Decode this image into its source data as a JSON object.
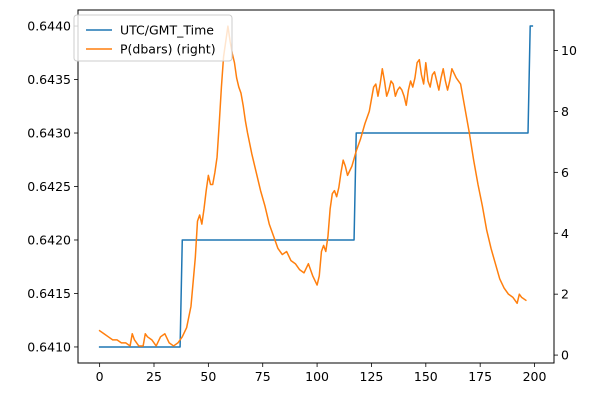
{
  "chart_data": {
    "type": "line",
    "title": "",
    "xlabel": "",
    "ylabel": "",
    "xlim": [
      -9.95,
      208.95
    ],
    "ylim_left": [
      0.64085,
      0.64415
    ],
    "ylim_right": [
      -0.26,
      11.33
    ],
    "grid": false,
    "legend_position": "upper-left",
    "x_ticks": [
      0,
      25,
      50,
      75,
      100,
      125,
      150,
      175,
      200
    ],
    "y_ticks_left": [
      "0.6410",
      "0.6415",
      "0.6420",
      "0.6425",
      "0.6430",
      "0.6435",
      "0.6440"
    ],
    "y_ticks_right": [
      0,
      2,
      4,
      6,
      8,
      10
    ],
    "series": [
      {
        "name": "UTC/GMT_Time",
        "axis": "left",
        "color": "#1f77b4",
        "points": [
          [
            0,
            0.641
          ],
          [
            37,
            0.641
          ],
          [
            38,
            0.642
          ],
          [
            117,
            0.642
          ],
          [
            118,
            0.643
          ],
          [
            197,
            0.643
          ],
          [
            198,
            0.644
          ],
          [
            199,
            0.644
          ]
        ]
      },
      {
        "name": "P(dbars) (right)",
        "axis": "right",
        "color": "#ff7f0e",
        "points": [
          [
            0,
            0.8
          ],
          [
            2,
            0.7
          ],
          [
            4,
            0.6
          ],
          [
            6,
            0.5
          ],
          [
            8,
            0.5
          ],
          [
            10,
            0.4
          ],
          [
            12,
            0.4
          ],
          [
            14,
            0.3
          ],
          [
            15,
            0.7
          ],
          [
            16,
            0.5
          ],
          [
            18,
            0.3
          ],
          [
            20,
            0.3
          ],
          [
            21,
            0.7
          ],
          [
            22,
            0.6
          ],
          [
            24,
            0.5
          ],
          [
            26,
            0.3
          ],
          [
            28,
            0.6
          ],
          [
            30,
            0.7
          ],
          [
            32,
            0.4
          ],
          [
            34,
            0.3
          ],
          [
            36,
            0.4
          ],
          [
            38,
            0.6
          ],
          [
            40,
            0.9
          ],
          [
            42,
            1.6
          ],
          [
            44,
            3.2
          ],
          [
            45,
            4.4
          ],
          [
            46,
            4.6
          ],
          [
            47,
            4.3
          ],
          [
            48,
            4.8
          ],
          [
            49,
            5.4
          ],
          [
            50,
            5.9
          ],
          [
            51,
            5.6
          ],
          [
            52,
            5.6
          ],
          [
            53,
            6.0
          ],
          [
            54,
            6.5
          ],
          [
            55,
            7.6
          ],
          [
            56,
            8.8
          ],
          [
            57,
            9.8
          ],
          [
            58,
            10.3
          ],
          [
            59,
            10.8
          ],
          [
            60,
            10.3
          ],
          [
            61,
            9.9
          ],
          [
            62,
            9.6
          ],
          [
            63,
            9.1
          ],
          [
            64,
            8.8
          ],
          [
            65,
            8.6
          ],
          [
            66,
            8.2
          ],
          [
            67,
            7.7
          ],
          [
            68,
            7.3
          ],
          [
            70,
            6.6
          ],
          [
            72,
            6.0
          ],
          [
            74,
            5.4
          ],
          [
            76,
            4.9
          ],
          [
            78,
            4.3
          ],
          [
            80,
            3.9
          ],
          [
            82,
            3.5
          ],
          [
            84,
            3.3
          ],
          [
            86,
            3.4
          ],
          [
            88,
            3.1
          ],
          [
            90,
            3.0
          ],
          [
            92,
            2.8
          ],
          [
            94,
            2.7
          ],
          [
            96,
            3.0
          ],
          [
            98,
            2.6
          ],
          [
            100,
            2.3
          ],
          [
            101,
            2.6
          ],
          [
            102,
            3.4
          ],
          [
            103,
            3.6
          ],
          [
            104,
            3.4
          ],
          [
            105,
            3.9
          ],
          [
            106,
            4.8
          ],
          [
            107,
            5.3
          ],
          [
            108,
            5.4
          ],
          [
            109,
            5.2
          ],
          [
            110,
            5.5
          ],
          [
            111,
            6.0
          ],
          [
            112,
            6.4
          ],
          [
            113,
            6.2
          ],
          [
            114,
            5.9
          ],
          [
            116,
            6.2
          ],
          [
            118,
            6.7
          ],
          [
            120,
            7.1
          ],
          [
            122,
            7.6
          ],
          [
            124,
            8.0
          ],
          [
            126,
            8.8
          ],
          [
            127,
            8.9
          ],
          [
            128,
            8.5
          ],
          [
            129,
            8.9
          ],
          [
            130,
            9.4
          ],
          [
            131,
            9.0
          ],
          [
            132,
            8.5
          ],
          [
            133,
            8.7
          ],
          [
            134,
            9.0
          ],
          [
            135,
            8.9
          ],
          [
            136,
            8.5
          ],
          [
            137,
            8.7
          ],
          [
            138,
            8.8
          ],
          [
            139,
            8.7
          ],
          [
            140,
            8.5
          ],
          [
            141,
            8.2
          ],
          [
            142,
            8.7
          ],
          [
            143,
            9.0
          ],
          [
            144,
            8.8
          ],
          [
            145,
            9.1
          ],
          [
            146,
            9.6
          ],
          [
            147,
            9.7
          ],
          [
            148,
            9.2
          ],
          [
            149,
            8.9
          ],
          [
            150,
            9.6
          ],
          [
            151,
            9.0
          ],
          [
            152,
            8.8
          ],
          [
            153,
            9.2
          ],
          [
            154,
            9.3
          ],
          [
            155,
            9.0
          ],
          [
            156,
            8.7
          ],
          [
            157,
            9.1
          ],
          [
            158,
            9.4
          ],
          [
            159,
            9.0
          ],
          [
            160,
            8.7
          ],
          [
            161,
            9.0
          ],
          [
            162,
            9.4
          ],
          [
            164,
            9.1
          ],
          [
            166,
            8.9
          ],
          [
            168,
            8.1
          ],
          [
            170,
            7.3
          ],
          [
            172,
            6.4
          ],
          [
            174,
            5.6
          ],
          [
            176,
            4.9
          ],
          [
            178,
            4.1
          ],
          [
            180,
            3.5
          ],
          [
            182,
            3.0
          ],
          [
            184,
            2.5
          ],
          [
            186,
            2.2
          ],
          [
            188,
            2.0
          ],
          [
            190,
            1.9
          ],
          [
            192,
            1.7
          ],
          [
            193,
            2.0
          ],
          [
            194,
            1.9
          ],
          [
            196,
            1.8
          ]
        ]
      }
    ]
  }
}
